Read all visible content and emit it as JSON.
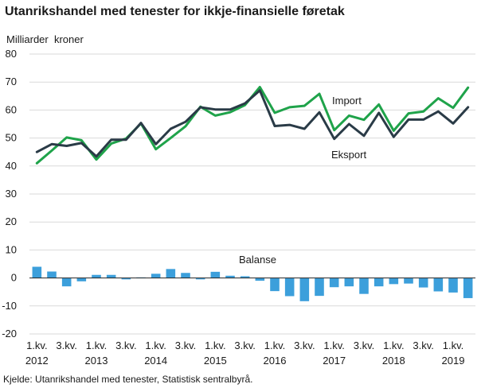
{
  "title": "Utanrikshandel med tenester for ikkje-finansielle føretak",
  "y_unit": "Milliarder  kroner",
  "source": "Kjelde: Utanrikshandel med tenester, Statistisk sentralbyrå.",
  "colors": {
    "import": "#1fa34a",
    "export": "#2a3b47",
    "balance": "#3c9fdb",
    "grid": "#d9d9d9",
    "zero": "#222222"
  },
  "chart_data": {
    "type": "line",
    "ylim": [
      -20,
      80
    ],
    "yticks": [
      -20,
      -10,
      0,
      10,
      20,
      30,
      40,
      50,
      60,
      70,
      80
    ],
    "grid": true,
    "x": [
      "2012K1",
      "2012K2",
      "2012K3",
      "2012K4",
      "2013K1",
      "2013K2",
      "2013K3",
      "2013K4",
      "2014K1",
      "2014K2",
      "2014K3",
      "2014K4",
      "2015K1",
      "2015K2",
      "2015K3",
      "2015K4",
      "2016K1",
      "2016K2",
      "2016K3",
      "2016K4",
      "2017K1",
      "2017K2",
      "2017K3",
      "2017K4",
      "2018K1",
      "2018K2",
      "2018K3",
      "2018K4",
      "2019K1",
      "2019K2"
    ],
    "x_tick_labels": [
      {
        "index": 0,
        "line1": "1.kv.",
        "line2": "2012"
      },
      {
        "index": 2,
        "line1": "3.kv.",
        "line2": ""
      },
      {
        "index": 4,
        "line1": "1.kv.",
        "line2": "2013"
      },
      {
        "index": 6,
        "line1": "3.kv.",
        "line2": ""
      },
      {
        "index": 8,
        "line1": "1.kv.",
        "line2": "2014"
      },
      {
        "index": 10,
        "line1": "3.kv.",
        "line2": ""
      },
      {
        "index": 12,
        "line1": "1.kv.",
        "line2": "2015"
      },
      {
        "index": 14,
        "line1": "3.kv.",
        "line2": ""
      },
      {
        "index": 16,
        "line1": "1.kv.",
        "line2": "2016"
      },
      {
        "index": 18,
        "line1": "3.kv.",
        "line2": ""
      },
      {
        "index": 20,
        "line1": "1.kv.",
        "line2": "2017"
      },
      {
        "index": 22,
        "line1": "3.kv.",
        "line2": ""
      },
      {
        "index": 24,
        "line1": "1.kv.",
        "line2": "2018"
      },
      {
        "index": 26,
        "line1": "3.kv.",
        "line2": ""
      },
      {
        "index": 28,
        "line1": "1.kv.",
        "line2": "2019"
      }
    ],
    "series": [
      {
        "name": "Import",
        "type": "line",
        "values": [
          41,
          45.5,
          50.2,
          49.2,
          42.3,
          48,
          49.8,
          55.2,
          46,
          50,
          54.2,
          61.2,
          58,
          59.2,
          61.8,
          68.2,
          59,
          61,
          61.5,
          65.8,
          52.8,
          58,
          56.5,
          62,
          52.6,
          58.8,
          59.5,
          64.2,
          60.8,
          68
        ]
      },
      {
        "name": "Eksport",
        "type": "line",
        "values": [
          45,
          47.8,
          47.2,
          48.2,
          43.4,
          49.4,
          49.4,
          55.4,
          47.8,
          53.3,
          55.8,
          61,
          60.2,
          60.2,
          62.4,
          67,
          54.3,
          54.7,
          53.3,
          59.2,
          49.7,
          55,
          50.8,
          59,
          50.4,
          56.6,
          56.6,
          59.5,
          55.2,
          61
        ]
      },
      {
        "name": "Balanse",
        "type": "bar",
        "values": [
          4,
          2.3,
          -3,
          -1.2,
          1.1,
          1.1,
          -0.5,
          0.2,
          1.5,
          3.2,
          1.8,
          -0.5,
          2.2,
          0.8,
          0.6,
          -1,
          -4.7,
          -6.5,
          -8.3,
          -6.4,
          -3.3,
          -3,
          -5.7,
          -3,
          -2.2,
          -2,
          -3.4,
          -4.8,
          -5.2,
          -7.2
        ]
      }
    ],
    "annotations": {
      "import_label": "Import",
      "export_label": "Eksport",
      "balance_label": "Balanse"
    }
  }
}
